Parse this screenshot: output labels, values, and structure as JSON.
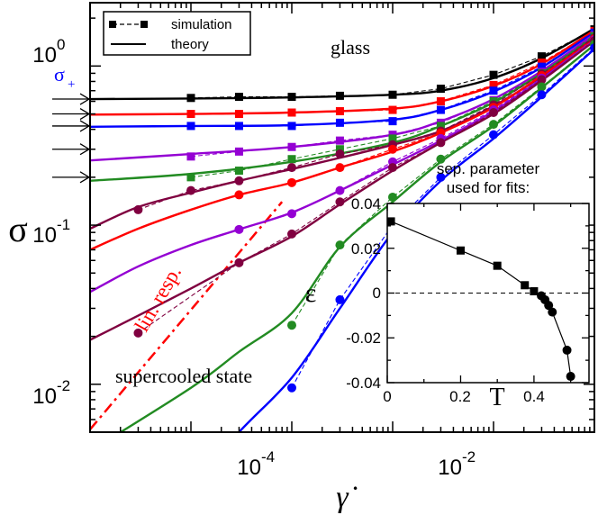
{
  "chart_data": [
    {
      "type": "line",
      "xlabel": "γ̇",
      "ylabel": "σ",
      "xscale": "log",
      "yscale": "log",
      "xlim": [
        1e-06,
        0.1
      ],
      "ylim": [
        0.005,
        2.5
      ],
      "xticks": [
        {
          "base": "10",
          "exp": "-4",
          "value": 0.0001
        },
        {
          "base": "10",
          "exp": "-2",
          "value": 0.01
        }
      ],
      "yticks": [
        {
          "base": "10",
          "exp": "-2",
          "value": 0.01
        },
        {
          "base": "10",
          "exp": "-1",
          "value": 0.1
        },
        {
          "base": "10",
          "exp": "0",
          "value": 1
        }
      ],
      "legend": {
        "position": "top-left",
        "items": [
          {
            "label": "simulation",
            "style": "dashed-square"
          },
          {
            "label": "theory",
            "style": "solid"
          }
        ]
      },
      "annotations": {
        "glass": "glass",
        "supercooled": "supercooled state",
        "linresp": "lin. resp.",
        "sigma_plus": "σ",
        "sigma_plus_sub": "+"
      },
      "yield_arrows": [
        0.62,
        0.5,
        0.42,
        0.3,
        0.2
      ],
      "lin_resp": [
        [
          1e-06,
          0.0052
        ],
        [
          8e-05,
          0.14
        ]
      ],
      "series": [
        {
          "color": "#000000",
          "sim": [
            [
              1e-05,
              0.63
            ],
            [
              3e-05,
              0.64
            ],
            [
              0.0001,
              0.64
            ],
            [
              0.0003,
              0.65
            ],
            [
              0.001,
              0.66
            ],
            [
              0.003,
              0.72
            ],
            [
              0.01,
              0.88
            ],
            [
              0.03,
              1.15
            ],
            [
              0.1,
              1.7
            ]
          ],
          "theory": [
            [
              1e-06,
              0.62
            ],
            [
              1e-05,
              0.625
            ],
            [
              0.0001,
              0.635
            ],
            [
              0.001,
              0.66
            ],
            [
              0.003,
              0.7
            ],
            [
              0.01,
              0.84
            ],
            [
              0.03,
              1.12
            ],
            [
              0.1,
              1.72
            ]
          ]
        },
        {
          "color": "#ff0000",
          "sim": [
            [
              1e-05,
              0.5
            ],
            [
              3e-05,
              0.5
            ],
            [
              0.0001,
              0.51
            ],
            [
              0.0003,
              0.52
            ],
            [
              0.001,
              0.53
            ],
            [
              0.003,
              0.6
            ],
            [
              0.01,
              0.76
            ],
            [
              0.03,
              1.05
            ],
            [
              0.1,
              1.66
            ]
          ],
          "theory": [
            [
              1e-06,
              0.495
            ],
            [
              1e-05,
              0.5
            ],
            [
              0.0001,
              0.51
            ],
            [
              0.001,
              0.54
            ],
            [
              0.003,
              0.6
            ],
            [
              0.01,
              0.75
            ],
            [
              0.03,
              1.03
            ],
            [
              0.1,
              1.68
            ]
          ]
        },
        {
          "color": "#0000ff",
          "sim": [
            [
              1e-05,
              0.42
            ],
            [
              3e-05,
              0.42
            ],
            [
              0.0001,
              0.42
            ],
            [
              0.0003,
              0.44
            ],
            [
              0.001,
              0.45
            ],
            [
              0.003,
              0.53
            ],
            [
              0.01,
              0.7
            ],
            [
              0.03,
              0.99
            ],
            [
              0.1,
              1.62
            ]
          ],
          "theory": [
            [
              1e-06,
              0.415
            ],
            [
              1e-05,
              0.42
            ],
            [
              0.0001,
              0.425
            ],
            [
              0.001,
              0.46
            ],
            [
              0.003,
              0.53
            ],
            [
              0.01,
              0.69
            ],
            [
              0.03,
              0.98
            ],
            [
              0.1,
              1.64
            ]
          ]
        },
        {
          "color": "#9400d3",
          "sim": [
            [
              1e-05,
              0.27
            ],
            [
              3e-05,
              0.29
            ],
            [
              0.0001,
              0.31
            ],
            [
              0.0003,
              0.34
            ],
            [
              0.001,
              0.37
            ],
            [
              0.003,
              0.44
            ],
            [
              0.01,
              0.61
            ],
            [
              0.03,
              0.92
            ],
            [
              0.1,
              1.56
            ]
          ],
          "theory": [
            [
              1e-06,
              0.255
            ],
            [
              1e-05,
              0.28
            ],
            [
              0.0001,
              0.31
            ],
            [
              0.001,
              0.37
            ],
            [
              0.003,
              0.45
            ],
            [
              0.01,
              0.62
            ],
            [
              0.03,
              0.93
            ],
            [
              0.1,
              1.58
            ]
          ]
        },
        {
          "color": "#228b22",
          "sim": [
            [
              1e-05,
              0.2
            ],
            [
              3e-05,
              0.22
            ],
            [
              0.0001,
              0.26
            ],
            [
              0.0003,
              0.3
            ],
            [
              0.001,
              0.35
            ],
            [
              0.003,
              0.42
            ],
            [
              0.01,
              0.6
            ],
            [
              0.03,
              0.9
            ],
            [
              0.1,
              1.54
            ]
          ],
          "theory": [
            [
              1e-06,
              0.19
            ],
            [
              1e-05,
              0.21
            ],
            [
              0.0001,
              0.25
            ],
            [
              0.001,
              0.33
            ],
            [
              0.003,
              0.42
            ],
            [
              0.01,
              0.59
            ],
            [
              0.03,
              0.9
            ],
            [
              0.1,
              1.55
            ]
          ]
        },
        {
          "color": "#800040",
          "sim": [
            [
              3e-06,
              0.125
            ],
            [
              1e-05,
              0.165
            ],
            [
              3e-05,
              0.19
            ],
            [
              0.0001,
              0.23
            ],
            [
              0.0003,
              0.28
            ],
            [
              0.001,
              0.32
            ],
            [
              0.003,
              0.39
            ],
            [
              0.01,
              0.57
            ],
            [
              0.03,
              0.89
            ],
            [
              0.1,
              1.5
            ]
          ],
          "theory": [
            [
              1e-06,
              0.095
            ],
            [
              3e-06,
              0.13
            ],
            [
              1e-05,
              0.16
            ],
            [
              3e-05,
              0.19
            ],
            [
              0.0001,
              0.225
            ],
            [
              0.0003,
              0.265
            ],
            [
              0.001,
              0.32
            ],
            [
              0.003,
              0.39
            ],
            [
              0.01,
              0.56
            ],
            [
              0.03,
              0.86
            ],
            [
              0.1,
              1.52
            ]
          ]
        },
        {
          "color": "#ff0000",
          "sim": [
            [
              3e-05,
              0.155
            ],
            [
              0.0001,
              0.185
            ],
            [
              0.0003,
              0.23
            ],
            [
              0.001,
              0.3
            ],
            [
              0.003,
              0.38
            ],
            [
              0.01,
              0.55
            ],
            [
              0.03,
              0.87
            ],
            [
              0.1,
              1.48
            ]
          ],
          "theory": [
            [
              1e-06,
              0.07
            ],
            [
              3e-06,
              0.095
            ],
            [
              1e-05,
              0.125
            ],
            [
              3e-05,
              0.155
            ],
            [
              0.0001,
              0.185
            ],
            [
              0.0003,
              0.23
            ],
            [
              0.001,
              0.29
            ],
            [
              0.003,
              0.38
            ],
            [
              0.01,
              0.55
            ],
            [
              0.03,
              0.87
            ],
            [
              0.1,
              1.48
            ]
          ]
        },
        {
          "color": "#9400d3",
          "sim": [
            [
              3e-05,
              0.094
            ],
            [
              0.0001,
              0.118
            ],
            [
              0.0003,
              0.165
            ],
            [
              0.001,
              0.25
            ],
            [
              0.003,
              0.35
            ],
            [
              0.01,
              0.53
            ],
            [
              0.03,
              0.84
            ],
            [
              0.1,
              1.46
            ]
          ],
          "theory": [
            [
              1e-06,
              0.038
            ],
            [
              3e-06,
              0.055
            ],
            [
              1e-05,
              0.075
            ],
            [
              3e-05,
              0.094
            ],
            [
              0.0001,
              0.12
            ],
            [
              0.0003,
              0.165
            ],
            [
              0.001,
              0.24
            ],
            [
              0.003,
              0.34
            ],
            [
              0.01,
              0.52
            ],
            [
              0.03,
              0.83
            ],
            [
              0.1,
              1.46
            ]
          ]
        },
        {
          "color": "#800040",
          "sim": [
            [
              3e-06,
              0.021
            ],
            [
              3e-05,
              0.058
            ],
            [
              0.0001,
              0.088
            ],
            [
              0.0003,
              0.14
            ],
            [
              0.001,
              0.23
            ],
            [
              0.003,
              0.33
            ],
            [
              0.01,
              0.51
            ],
            [
              0.03,
              0.82
            ],
            [
              0.1,
              1.44
            ]
          ],
          "theory": [
            [
              1e-06,
              0.019
            ],
            [
              3e-06,
              0.027
            ],
            [
              1e-05,
              0.04
            ],
            [
              3e-05,
              0.058
            ],
            [
              0.0001,
              0.085
            ],
            [
              0.0003,
              0.135
            ],
            [
              0.001,
              0.22
            ],
            [
              0.003,
              0.33
            ],
            [
              0.01,
              0.5
            ],
            [
              0.03,
              0.81
            ],
            [
              0.1,
              1.44
            ]
          ]
        },
        {
          "color": "#228b22",
          "sim": [
            [
              0.0001,
              0.0235
            ],
            [
              0.0003,
              0.075
            ],
            [
              0.001,
              0.15
            ],
            [
              0.003,
              0.26
            ],
            [
              0.01,
              0.43
            ],
            [
              0.03,
              0.74
            ],
            [
              0.1,
              1.37
            ]
          ],
          "theory": [
            [
              1e-06,
              0.0038
            ],
            [
              1e-05,
              0.0095
            ],
            [
              3e-05,
              0.016
            ],
            [
              0.0001,
              0.028
            ],
            [
              0.0003,
              0.073
            ],
            [
              0.001,
              0.14
            ],
            [
              0.003,
              0.25
            ],
            [
              0.01,
              0.42
            ],
            [
              0.03,
              0.73
            ],
            [
              0.1,
              1.36
            ]
          ]
        },
        {
          "color": "#0000ff",
          "sim": [
            [
              0.0001,
              0.0095
            ],
            [
              0.0003,
              0.034
            ],
            [
              0.001,
              0.1
            ],
            [
              0.003,
              0.2
            ],
            [
              0.01,
              0.37
            ],
            [
              0.03,
              0.66
            ],
            [
              0.1,
              1.3
            ]
          ],
          "theory": [
            [
              1e-05,
              0.0022
            ],
            [
              3e-05,
              0.005
            ],
            [
              0.0001,
              0.011
            ],
            [
              0.0003,
              0.03
            ],
            [
              0.001,
              0.09
            ],
            [
              0.003,
              0.19
            ],
            [
              0.01,
              0.35
            ],
            [
              0.03,
              0.64
            ],
            [
              0.1,
              1.28
            ]
          ]
        }
      ]
    },
    {
      "type": "line",
      "title": "sep. parameter",
      "subtitle": "used for fits:",
      "xlabel": "T",
      "ylabel": "ε",
      "xlim": [
        0,
        0.55
      ],
      "ylim": [
        -0.04,
        0.04
      ],
      "xticks": [
        "0",
        "0.2",
        "0.4"
      ],
      "yticks": [
        "-0.04",
        "-0.02",
        "0",
        "0.02",
        "0.04"
      ],
      "reference_line": 0,
      "squares": [
        [
          0.01,
          0.032
        ],
        [
          0.2,
          0.019
        ],
        [
          0.3,
          0.0122
        ],
        [
          0.375,
          0.0035
        ],
        [
          0.4,
          0.0008
        ]
      ],
      "circles": [
        [
          0.42,
          -0.0012
        ],
        [
          0.43,
          -0.003
        ],
        [
          0.44,
          -0.0055
        ],
        [
          0.45,
          -0.0085
        ],
        [
          0.49,
          -0.0255
        ],
        [
          0.5,
          -0.0372
        ]
      ]
    }
  ]
}
